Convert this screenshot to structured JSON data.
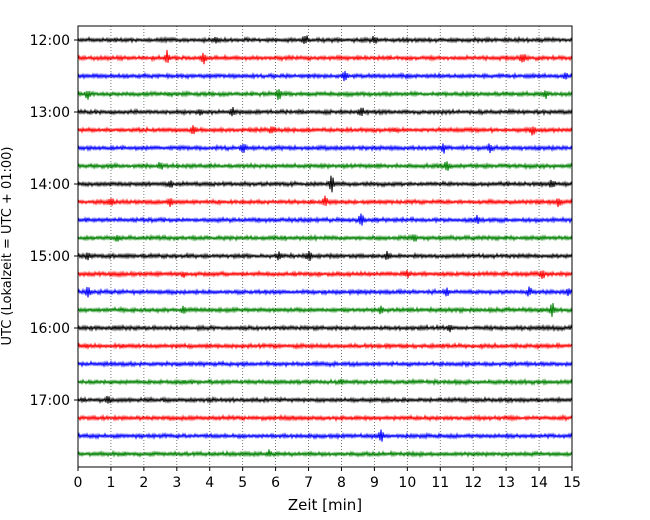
{
  "chart_data": {
    "type": "line",
    "title": "",
    "xlabel": "Zeit  [min]",
    "ylabel": "UTC (Lokalzeit = UTC + 01:00)",
    "xlim": [
      0,
      15
    ],
    "x_ticks": [
      "0",
      "1",
      "2",
      "3",
      "4",
      "5",
      "6",
      "7",
      "8",
      "9",
      "10",
      "11",
      "12",
      "13",
      "14",
      "15"
    ],
    "y_ticks": [
      "12:00",
      "13:00",
      "14:00",
      "15:00",
      "16:00",
      "17:00"
    ],
    "grid": "vertical dotted at each minute",
    "colors": [
      "#000000",
      "#ff0000",
      "#0000ff",
      "#008000"
    ],
    "rows": [
      {
        "start": "12:00",
        "color": "#000000",
        "events": [
          {
            "t": 4.2,
            "a": 3
          },
          {
            "t": 6.9,
            "a": 6
          },
          {
            "t": 9.0,
            "a": 4
          }
        ]
      },
      {
        "start": "12:15",
        "color": "#ff0000",
        "events": [
          {
            "t": 2.7,
            "a": 7
          },
          {
            "t": 3.8,
            "a": 6
          },
          {
            "t": 13.5,
            "a": 6
          }
        ]
      },
      {
        "start": "12:30",
        "color": "#0000ff",
        "events": [
          {
            "t": 8.1,
            "a": 7
          },
          {
            "t": 14.8,
            "a": 3
          }
        ]
      },
      {
        "start": "12:45",
        "color": "#008000",
        "events": [
          {
            "t": 0.3,
            "a": 5
          },
          {
            "t": 6.1,
            "a": 6
          },
          {
            "t": 14.2,
            "a": 5
          }
        ]
      },
      {
        "start": "13:00",
        "color": "#000000",
        "events": [
          {
            "t": 3.7,
            "a": 3
          },
          {
            "t": 4.7,
            "a": 4
          },
          {
            "t": 8.6,
            "a": 6
          }
        ]
      },
      {
        "start": "13:15",
        "color": "#ff0000",
        "events": [
          {
            "t": 3.5,
            "a": 5
          },
          {
            "t": 5.9,
            "a": 5
          },
          {
            "t": 13.8,
            "a": 5
          }
        ]
      },
      {
        "start": "13:30",
        "color": "#0000ff",
        "events": [
          {
            "t": 5.0,
            "a": 6
          },
          {
            "t": 11.1,
            "a": 5
          },
          {
            "t": 12.5,
            "a": 4
          }
        ]
      },
      {
        "start": "13:45",
        "color": "#008000",
        "events": [
          {
            "t": 2.5,
            "a": 4
          },
          {
            "t": 11.2,
            "a": 5
          }
        ]
      },
      {
        "start": "14:00",
        "color": "#000000",
        "events": [
          {
            "t": 2.8,
            "a": 4
          },
          {
            "t": 7.7,
            "a": 8
          },
          {
            "t": 14.4,
            "a": 5
          }
        ]
      },
      {
        "start": "14:15",
        "color": "#ff0000",
        "events": [
          {
            "t": 1.0,
            "a": 6
          },
          {
            "t": 2.8,
            "a": 5
          },
          {
            "t": 7.5,
            "a": 5
          },
          {
            "t": 14.6,
            "a": 5
          }
        ]
      },
      {
        "start": "14:30",
        "color": "#0000ff",
        "events": [
          {
            "t": 8.6,
            "a": 6
          },
          {
            "t": 12.1,
            "a": 4
          }
        ]
      },
      {
        "start": "14:45",
        "color": "#008000",
        "events": [
          {
            "t": 1.2,
            "a": 4
          },
          {
            "t": 10.2,
            "a": 5
          }
        ]
      },
      {
        "start": "15:00",
        "color": "#000000",
        "events": [
          {
            "t": 0.3,
            "a": 4
          },
          {
            "t": 6.1,
            "a": 4
          },
          {
            "t": 7.0,
            "a": 6
          },
          {
            "t": 9.4,
            "a": 4
          }
        ]
      },
      {
        "start": "15:15",
        "color": "#ff0000",
        "events": [
          {
            "t": 3.2,
            "a": 3
          },
          {
            "t": 10.0,
            "a": 4
          },
          {
            "t": 14.1,
            "a": 5
          }
        ]
      },
      {
        "start": "15:30",
        "color": "#0000ff",
        "events": [
          {
            "t": 0.3,
            "a": 6
          },
          {
            "t": 11.2,
            "a": 4
          },
          {
            "t": 13.7,
            "a": 5
          },
          {
            "t": 14.9,
            "a": 5
          }
        ]
      },
      {
        "start": "15:45",
        "color": "#008000",
        "events": [
          {
            "t": 3.2,
            "a": 3
          },
          {
            "t": 9.2,
            "a": 4
          },
          {
            "t": 14.4,
            "a": 7
          }
        ]
      },
      {
        "start": "16:00",
        "color": "#000000",
        "events": [
          {
            "t": 11.3,
            "a": 4
          }
        ]
      },
      {
        "start": "16:15",
        "color": "#ff0000",
        "events": []
      },
      {
        "start": "16:30",
        "color": "#0000ff",
        "events": []
      },
      {
        "start": "16:45",
        "color": "#008000",
        "events": [
          {
            "t": 8.0,
            "a": 3
          }
        ]
      },
      {
        "start": "17:00",
        "color": "#000000",
        "events": [
          {
            "t": 0.9,
            "a": 4
          }
        ]
      },
      {
        "start": "17:15",
        "color": "#ff0000",
        "events": []
      },
      {
        "start": "17:30",
        "color": "#0000ff",
        "events": [
          {
            "t": 9.2,
            "a": 6
          }
        ]
      },
      {
        "start": "17:45",
        "color": "#008000",
        "events": [
          {
            "t": 5.8,
            "a": 3
          }
        ]
      }
    ]
  }
}
